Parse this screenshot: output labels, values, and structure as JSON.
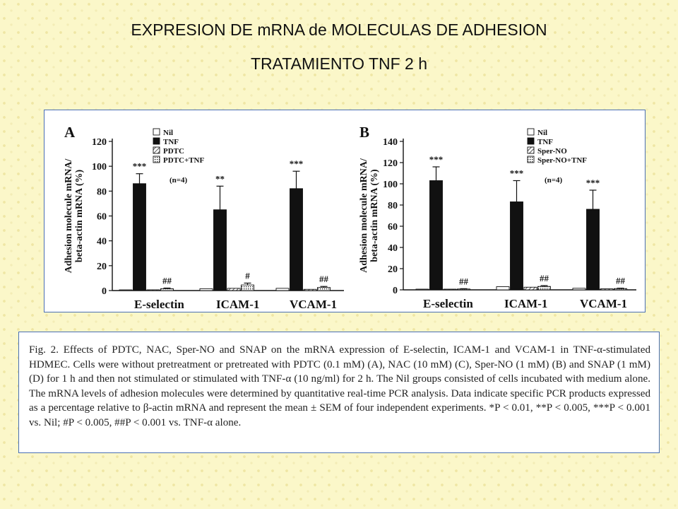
{
  "slide": {
    "title": "EXPRESION DE mRNA de MOLECULAS DE ADHESION",
    "subtitle": "TRATAMIENTO TNF 2 h"
  },
  "chart_data": [
    {
      "type": "bar",
      "panel_label": "A",
      "ylabel_line1": "Adhesion molecule mRNA/",
      "ylabel_line2": "beta-actin mRNA (%)",
      "ylim": [
        0,
        120
      ],
      "yticks": [
        0,
        20,
        40,
        60,
        80,
        100,
        120
      ],
      "categories": [
        "E-selectin",
        "ICAM-1",
        "VCAM-1"
      ],
      "series": [
        {
          "name": "Nil",
          "fill": "open",
          "values": [
            0.5,
            1.5,
            1.8
          ]
        },
        {
          "name": "TNF",
          "fill": "solid",
          "values": [
            86,
            65,
            82
          ],
          "errors": [
            8,
            19,
            14
          ],
          "significance": [
            "***",
            "**",
            "***"
          ]
        },
        {
          "name": "PDTC",
          "fill": "hatched",
          "values": [
            0.6,
            1.8,
            1.0
          ]
        },
        {
          "name": "PDTC+TNF",
          "fill": "dotted",
          "values": [
            1.5,
            4.5,
            2.5
          ],
          "errors": [
            0.5,
            1.5,
            0.8
          ],
          "significance": [
            "##",
            "#",
            "##"
          ]
        }
      ],
      "n_note": "(n=4)",
      "legend_position": "top-right"
    },
    {
      "type": "bar",
      "panel_label": "B",
      "ylabel_line1": "Adhesion molecule mRNA/",
      "ylabel_line2": "beta-actin mRNA (%)",
      "ylim": [
        0,
        140
      ],
      "yticks": [
        0,
        20,
        40,
        60,
        80,
        100,
        120,
        140
      ],
      "categories": [
        "E-selectin",
        "ICAM-1",
        "VCAM-1"
      ],
      "series": [
        {
          "name": "Nil",
          "fill": "open",
          "values": [
            0.5,
            3.0,
            1.5
          ]
        },
        {
          "name": "TNF",
          "fill": "solid",
          "values": [
            103,
            83,
            76
          ],
          "errors": [
            13,
            20,
            18
          ],
          "significance": [
            "***",
            "***",
            "***"
          ]
        },
        {
          "name": "Sper-NO",
          "fill": "hatched",
          "values": [
            0.5,
            2.5,
            1.0
          ]
        },
        {
          "name": "Sper-NO+TNF",
          "fill": "dotted",
          "values": [
            0.8,
            3.2,
            1.2
          ],
          "errors": [
            0.3,
            0.8,
            0.4
          ],
          "significance": [
            "##",
            "##",
            "##"
          ]
        }
      ],
      "n_note": "(n=4)",
      "legend_position": "top-right"
    }
  ],
  "caption": "Fig. 2. Effects of PDTC, NAC, Sper-NO and SNAP on the mRNA expression of E-selectin, ICAM-1 and VCAM-1 in TNF-α-stimulated HDMEC. Cells were without pretreatment or pretreated with PDTC (0.1 mM) (A), NAC (10 mM) (C), Sper-NO (1 mM) (B) and SNAP (1 mM) (D) for 1 h and then not stimulated or stimulated with TNF-α (10 ng/ml) for 2 h. The Nil groups consisted of cells incubated with medium alone. The mRNA levels of adhesion molecules were determined by quantitative real-time PCR analysis. Data indicate specific PCR products expressed as a percentage relative to β-actin mRNA and represent the mean ± SEM of four independent experiments. *P < 0.01, **P < 0.005, ***P < 0.001 vs. Nil; #P < 0.005, ##P < 0.001 vs. TNF-α alone."
}
